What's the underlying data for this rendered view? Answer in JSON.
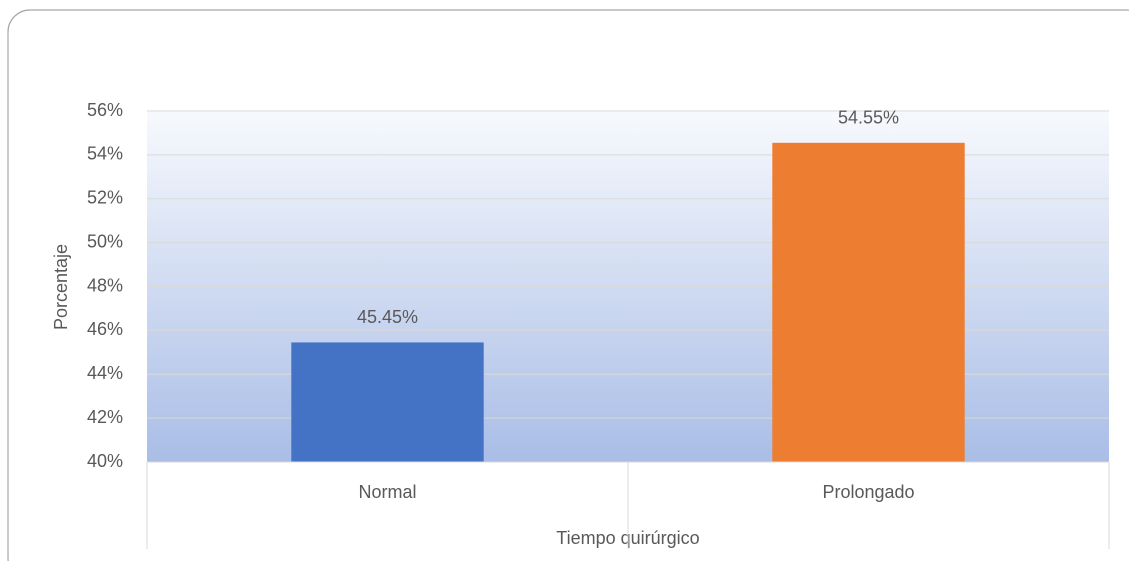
{
  "chart_data": {
    "type": "bar",
    "categories": [
      "Normal",
      "Prolongado"
    ],
    "values": [
      45.45,
      54.55
    ],
    "value_labels": [
      "45.45%",
      "54.55%"
    ],
    "colors": [
      "#4472c4",
      "#ed7d31"
    ],
    "ylabel": "Porcentaje",
    "xlabel": "Tiempo quirúrgico",
    "ylim": [
      40,
      56
    ],
    "yticks": [
      {
        "value": 40,
        "label": "40%"
      },
      {
        "value": 42,
        "label": "42%"
      },
      {
        "value": 44,
        "label": "44%"
      },
      {
        "value": 46,
        "label": "46%"
      },
      {
        "value": 48,
        "label": "48%"
      },
      {
        "value": 50,
        "label": "50%"
      },
      {
        "value": 52,
        "label": "52%"
      },
      {
        "value": 54,
        "label": "54%"
      },
      {
        "value": 56,
        "label": "56%"
      }
    ],
    "grid": true
  }
}
